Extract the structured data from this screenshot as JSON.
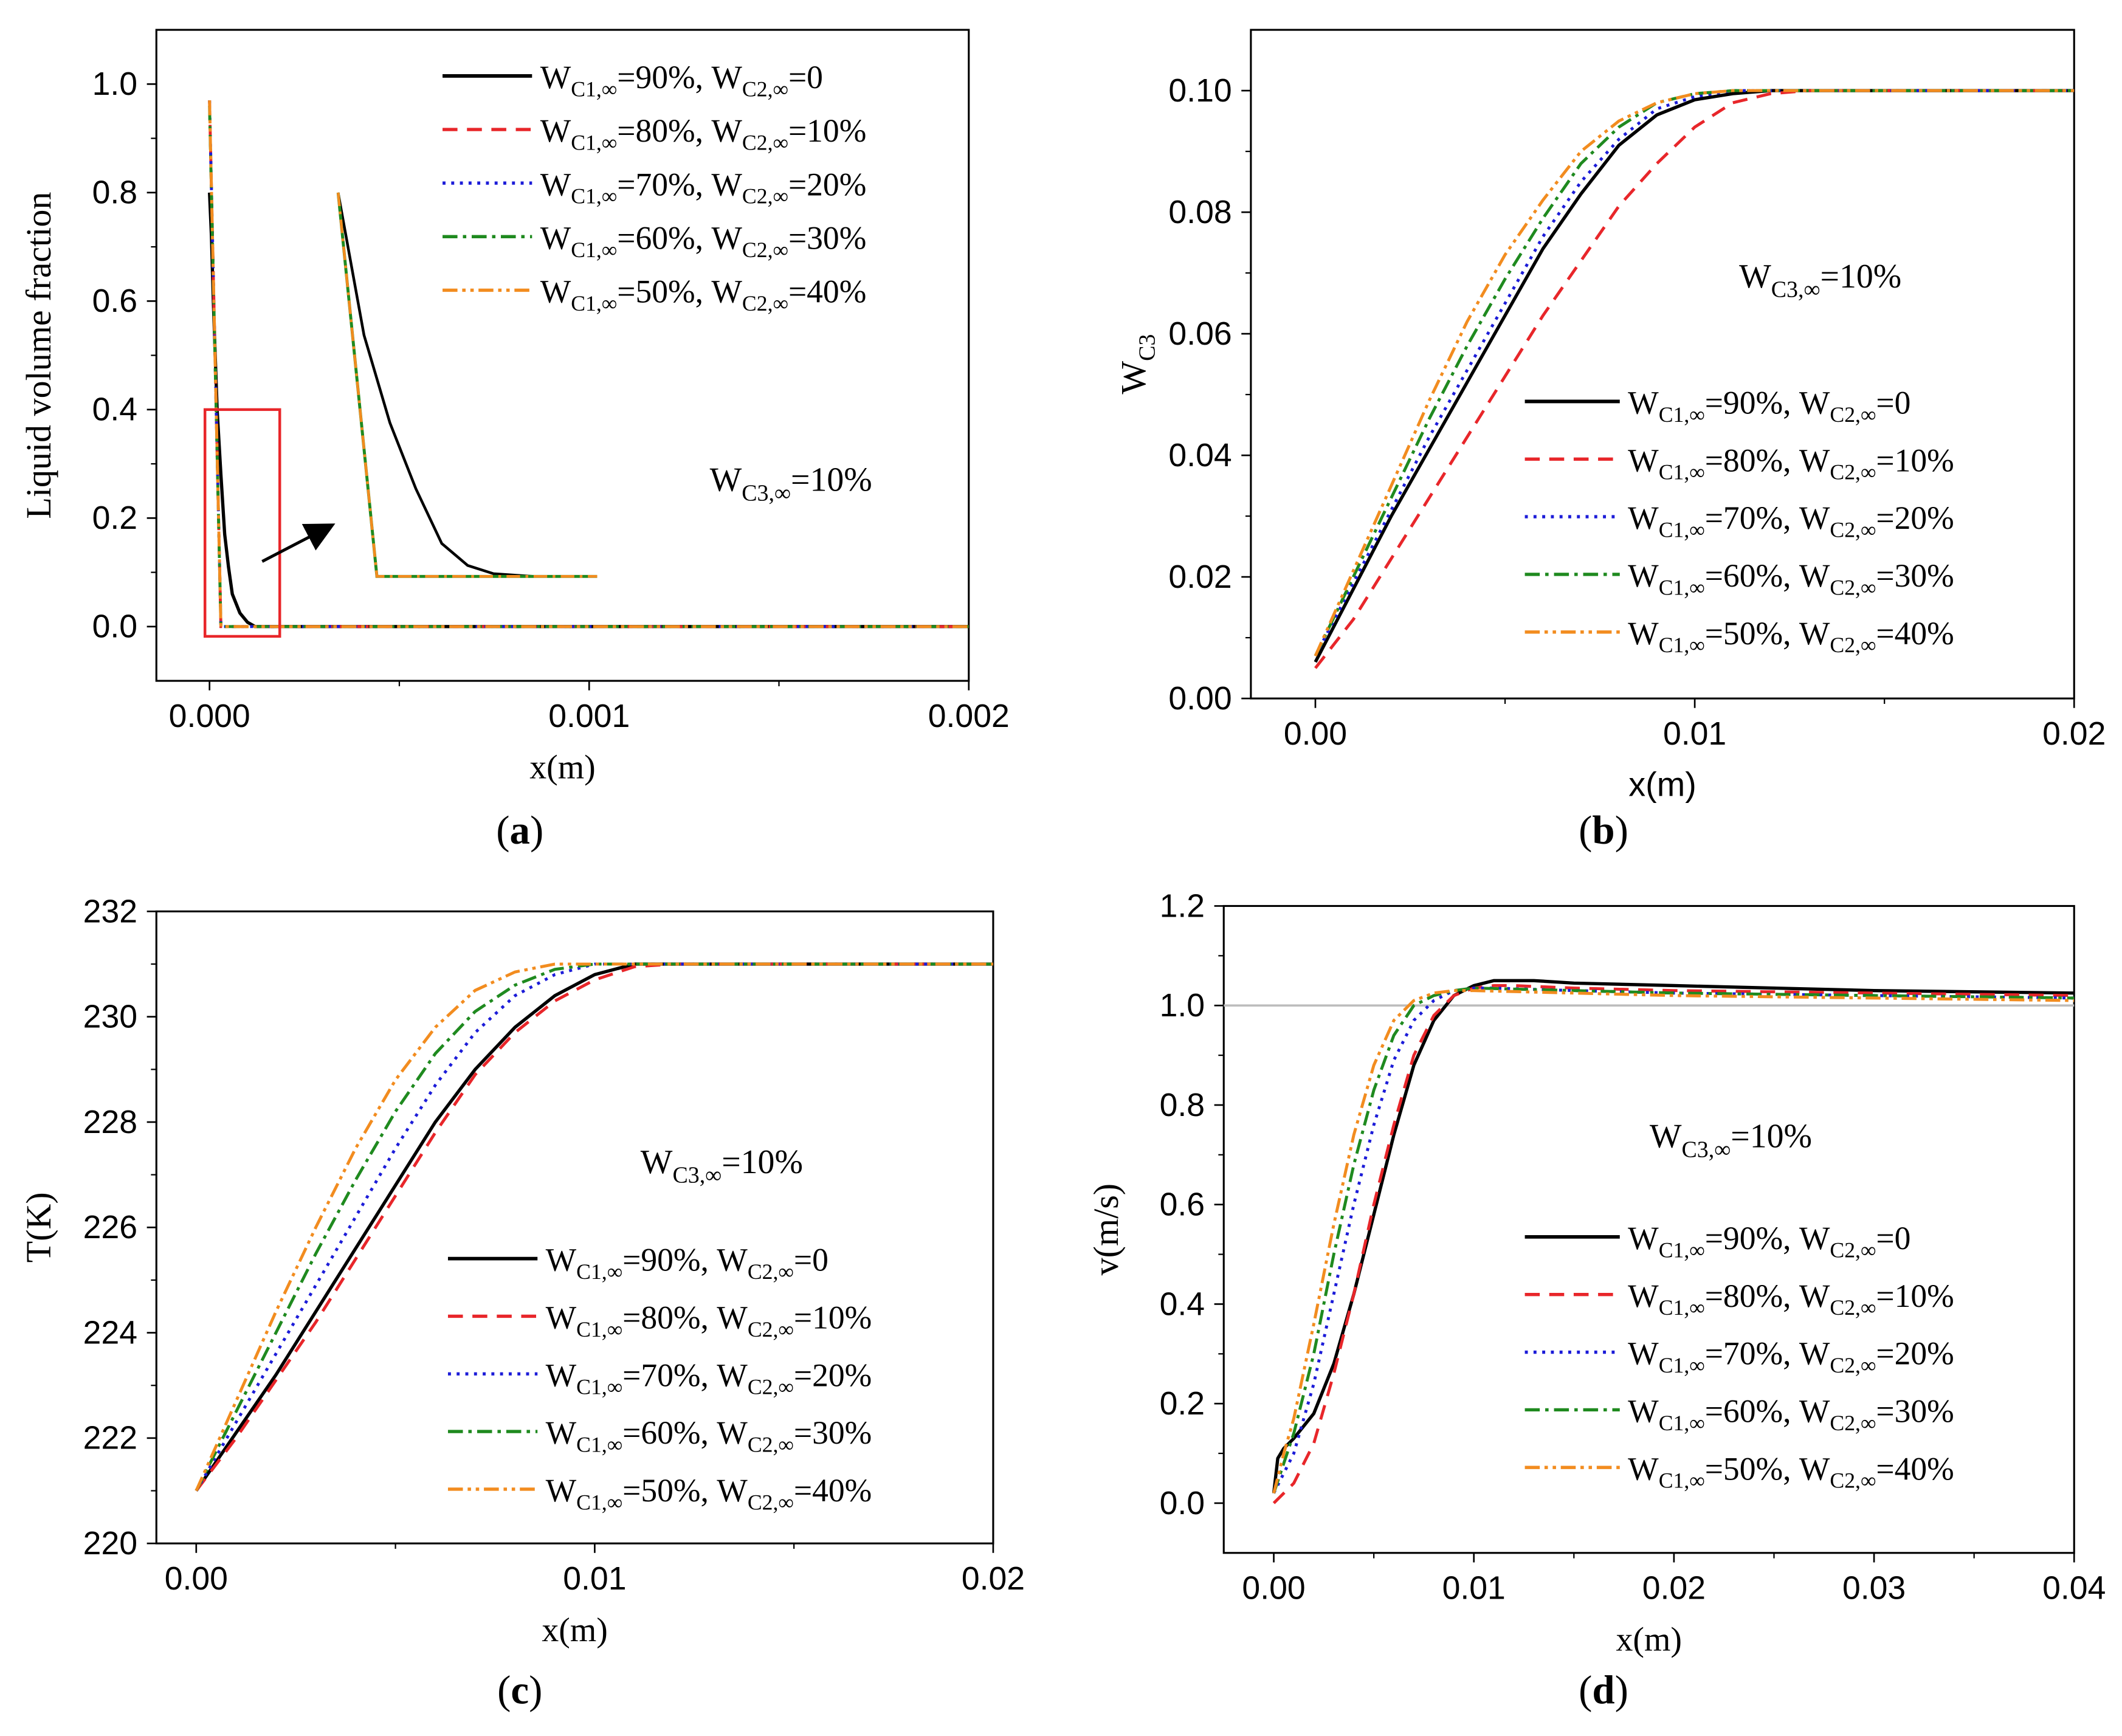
{
  "legend_labels": [
    {
      "c1": "=90%, ",
      "c2": "=0"
    },
    {
      "c1": "=80%, ",
      "c2": "=10%"
    },
    {
      "c1": "=70%, ",
      "c2": "=20%"
    },
    {
      "c1": "=60%, ",
      "c2": "=30%"
    },
    {
      "c1": "=50%, ",
      "c2": "=40%"
    }
  ],
  "series_styles": [
    {
      "color": "#000000",
      "dash": ""
    },
    {
      "color": "#e8262a",
      "dash": "dashed"
    },
    {
      "color": "#1c1cd8",
      "dash": "dotted"
    },
    {
      "color": "#1f8a1f",
      "dash": "dash-dot"
    },
    {
      "color": "#f28c1f",
      "dash": "dash-dot-dot"
    }
  ],
  "chart_data": [
    {
      "type": "line",
      "panel_label": "a",
      "xlabel": "x(m)",
      "ylabel": "Liquid volume fraction",
      "xlim": [
        -0.00014,
        0.002
      ],
      "ylim": [
        -0.1,
        1.1
      ],
      "xticks": [
        0,
        0.001,
        0.002
      ],
      "xtick_labels": [
        "0.000",
        "0.001",
        "0.002"
      ],
      "yticks": [
        0,
        0.2,
        0.4,
        0.6,
        0.8,
        1.0
      ],
      "ytick_labels": [
        "0.0",
        "0.2",
        "0.4",
        "0.6",
        "0.8",
        "1.0"
      ],
      "annotation": "=10%",
      "series": [
        {
          "name": "WC1,∞=90%, WC2,∞=0",
          "x": [
            0,
            5e-06,
            1e-05,
            2e-05,
            3e-05,
            4e-05,
            5e-05,
            6e-05,
            8e-05,
            0.0001,
            0.00012,
            0.002
          ],
          "y": [
            0.8,
            0.72,
            0.6,
            0.4,
            0.28,
            0.17,
            0.11,
            0.06,
            0.025,
            0.008,
            0,
            0
          ]
        },
        {
          "name": "WC1,∞=80%, WC2,∞=10%",
          "x": [
            0,
            3e-05,
            0.002
          ],
          "y": [
            0.97,
            0,
            0
          ]
        },
        {
          "name": "WC1,∞=70%, WC2,∞=20%",
          "x": [
            0,
            3e-05,
            0.002
          ],
          "y": [
            0.97,
            0,
            0
          ]
        },
        {
          "name": "WC1,∞=60%, WC2,∞=30%",
          "x": [
            0,
            3e-05,
            0.002
          ],
          "y": [
            0.96,
            0,
            0
          ]
        },
        {
          "name": "WC1,∞=50%, WC2,∞=40%",
          "x": [
            0,
            3e-05,
            0.002
          ],
          "y": [
            0.97,
            0,
            0
          ]
        }
      ],
      "inset": {
        "note": "zoomed view of region x 0 to 0.0002, y -0.02 to 0.4",
        "series": [
          {
            "x": [
              0,
              2e-05,
              4e-05,
              6e-05,
              8e-05,
              0.0001,
              0.00012,
              0.00015,
              0.0002
            ],
            "y": [
              0.8,
              0.54,
              0.38,
              0.26,
              0.16,
              0.12,
              0.105,
              0.1,
              0.1
            ]
          },
          {
            "x": [
              0,
              3e-05,
              0.0002
            ],
            "y": [
              0.8,
              0.1,
              0.1
            ]
          }
        ]
      }
    },
    {
      "type": "line",
      "panel_label": "b",
      "xlabel": "x(m)",
      "ylabel": "W",
      "ylabel_sub": "C3",
      "xlim": [
        -0.0017,
        0.02
      ],
      "ylim": [
        0,
        0.11
      ],
      "xticks": [
        0,
        0.01,
        0.02
      ],
      "xtick_labels": [
        "0.00",
        "0.01",
        "0.02"
      ],
      "yticks": [
        0,
        0.02,
        0.04,
        0.06,
        0.08,
        0.1
      ],
      "ytick_labels": [
        "0.00",
        "0.02",
        "0.04",
        "0.06",
        "0.08",
        "0.10"
      ],
      "annotation": "=10%",
      "series": [
        {
          "name": "WC1,∞=90%, WC2,∞=0",
          "x": [
            0,
            0.001,
            0.002,
            0.003,
            0.004,
            0.005,
            0.006,
            0.007,
            0.008,
            0.009,
            0.01,
            0.011,
            0.012,
            0.013,
            0.02
          ],
          "y": [
            0.006,
            0.018,
            0.03,
            0.041,
            0.052,
            0.063,
            0.074,
            0.083,
            0.091,
            0.096,
            0.0985,
            0.0995,
            0.1,
            0.1,
            0.1
          ]
        },
        {
          "name": "WC1,∞=80%, WC2,∞=10%",
          "x": [
            0,
            0.001,
            0.002,
            0.003,
            0.004,
            0.005,
            0.006,
            0.007,
            0.008,
            0.009,
            0.01,
            0.011,
            0.012,
            0.013,
            0.02
          ],
          "y": [
            0.005,
            0.013,
            0.023,
            0.033,
            0.043,
            0.053,
            0.063,
            0.072,
            0.081,
            0.088,
            0.094,
            0.098,
            0.0995,
            0.1,
            0.1
          ]
        },
        {
          "name": "WC1,∞=70%, WC2,∞=20%",
          "x": [
            0,
            0.001,
            0.002,
            0.003,
            0.004,
            0.005,
            0.006,
            0.007,
            0.008,
            0.009,
            0.01,
            0.011,
            0.012,
            0.02
          ],
          "y": [
            0.007,
            0.019,
            0.031,
            0.043,
            0.054,
            0.065,
            0.076,
            0.085,
            0.092,
            0.097,
            0.099,
            0.1,
            0.1,
            0.1
          ]
        },
        {
          "name": "WC1,∞=60%, WC2,∞=30%",
          "x": [
            0,
            0.001,
            0.002,
            0.003,
            0.004,
            0.005,
            0.006,
            0.007,
            0.008,
            0.009,
            0.01,
            0.011,
            0.02
          ],
          "y": [
            0.007,
            0.02,
            0.033,
            0.046,
            0.058,
            0.069,
            0.079,
            0.088,
            0.094,
            0.098,
            0.0995,
            0.1,
            0.1
          ]
        },
        {
          "name": "WC1,∞=50%, WC2,∞=40%",
          "x": [
            0,
            0.001,
            0.002,
            0.003,
            0.004,
            0.005,
            0.006,
            0.007,
            0.008,
            0.009,
            0.01,
            0.011,
            0.02
          ],
          "y": [
            0.007,
            0.021,
            0.035,
            0.049,
            0.062,
            0.073,
            0.082,
            0.09,
            0.095,
            0.098,
            0.0995,
            0.1,
            0.1
          ]
        }
      ]
    },
    {
      "type": "line",
      "panel_label": "c",
      "xlabel": "x(m)",
      "ylabel": "T(K)",
      "xlim": [
        -0.001,
        0.02
      ],
      "ylim": [
        220,
        232
      ],
      "xticks": [
        0,
        0.01,
        0.02
      ],
      "xtick_labels": [
        "0.00",
        "0.01",
        "0.02"
      ],
      "yticks": [
        220,
        222,
        224,
        226,
        228,
        230,
        232
      ],
      "ytick_labels": [
        "220",
        "222",
        "224",
        "226",
        "228",
        "230",
        "232"
      ],
      "annotation": "=10%",
      "series": [
        {
          "name": "WC1,∞=90%, WC2,∞=0",
          "x": [
            0,
            0.001,
            0.002,
            0.003,
            0.004,
            0.005,
            0.006,
            0.007,
            0.008,
            0.009,
            0.01,
            0.011,
            0.012,
            0.013,
            0.02
          ],
          "y": [
            221,
            222.1,
            223.2,
            224.4,
            225.6,
            226.8,
            228,
            229,
            229.8,
            230.4,
            230.8,
            231,
            231,
            231,
            231
          ]
        },
        {
          "name": "WC1,∞=80%, WC2,∞=10%",
          "x": [
            0,
            0.001,
            0.002,
            0.003,
            0.004,
            0.005,
            0.006,
            0.007,
            0.008,
            0.009,
            0.01,
            0.011,
            0.012,
            0.013,
            0.02
          ],
          "y": [
            221,
            222,
            223.1,
            224.2,
            225.4,
            226.6,
            227.8,
            228.9,
            229.7,
            230.3,
            230.7,
            230.95,
            231,
            231,
            231
          ]
        },
        {
          "name": "WC1,∞=70%, WC2,∞=20%",
          "x": [
            0,
            0.001,
            0.002,
            0.003,
            0.004,
            0.005,
            0.006,
            0.007,
            0.008,
            0.009,
            0.01,
            0.011,
            0.012,
            0.02
          ],
          "y": [
            221,
            222.3,
            223.6,
            224.9,
            226.2,
            227.5,
            228.7,
            229.7,
            230.4,
            230.8,
            231,
            231,
            231,
            231
          ]
        },
        {
          "name": "WC1,∞=60%, WC2,∞=30%",
          "x": [
            0,
            0.001,
            0.002,
            0.003,
            0.004,
            0.005,
            0.006,
            0.007,
            0.008,
            0.009,
            0.01,
            0.011,
            0.02
          ],
          "y": [
            221,
            222.5,
            224,
            225.5,
            226.9,
            228.2,
            229.3,
            230.1,
            230.6,
            230.9,
            231,
            231,
            231
          ]
        },
        {
          "name": "WC1,∞=50%, WC2,∞=40%",
          "x": [
            0,
            0.001,
            0.002,
            0.003,
            0.004,
            0.005,
            0.006,
            0.007,
            0.008,
            0.009,
            0.01,
            0.02
          ],
          "y": [
            221,
            222.7,
            224.4,
            226,
            227.5,
            228.8,
            229.8,
            230.5,
            230.85,
            231,
            231,
            231
          ]
        }
      ]
    },
    {
      "type": "line",
      "panel_label": "d",
      "xlabel": "x(m)",
      "ylabel": "v(m/s)",
      "xlim": [
        -0.0025,
        0.04
      ],
      "ylim": [
        -0.1,
        1.2
      ],
      "xticks": [
        0,
        0.01,
        0.02,
        0.03,
        0.04
      ],
      "xtick_labels": [
        "0.00",
        "0.01",
        "0.02",
        "0.03",
        "0.04"
      ],
      "yticks": [
        0,
        0.2,
        0.4,
        0.6,
        0.8,
        1.0,
        1.2
      ],
      "ytick_labels": [
        "0.0",
        "0.2",
        "0.4",
        "0.6",
        "0.8",
        "1.0",
        "1.2"
      ],
      "reference_line_y": 1.0,
      "annotation": "=10%",
      "series": [
        {
          "name": "WC1,∞=90%, WC2,∞=0",
          "x": [
            0,
            0.0002,
            0.0005,
            0.001,
            0.002,
            0.003,
            0.004,
            0.005,
            0.006,
            0.007,
            0.008,
            0.009,
            0.01,
            0.011,
            0.012,
            0.013,
            0.015,
            0.02,
            0.03,
            0.04
          ],
          "y": [
            0.02,
            0.09,
            0.11,
            0.13,
            0.18,
            0.28,
            0.42,
            0.58,
            0.74,
            0.88,
            0.97,
            1.02,
            1.04,
            1.05,
            1.05,
            1.05,
            1.045,
            1.04,
            1.03,
            1.025
          ]
        },
        {
          "name": "WC1,∞=80%, WC2,∞=10%",
          "x": [
            0,
            0.001,
            0.002,
            0.003,
            0.004,
            0.005,
            0.006,
            0.007,
            0.008,
            0.009,
            0.01,
            0.011,
            0.012,
            0.015,
            0.02,
            0.03,
            0.04
          ],
          "y": [
            0,
            0.04,
            0.12,
            0.26,
            0.42,
            0.6,
            0.76,
            0.9,
            0.98,
            1.02,
            1.035,
            1.04,
            1.04,
            1.035,
            1.03,
            1.025,
            1.02
          ]
        },
        {
          "name": "WC1,∞=70%, WC2,∞=20%",
          "x": [
            0,
            0.0005,
            0.001,
            0.002,
            0.003,
            0.004,
            0.005,
            0.006,
            0.007,
            0.008,
            0.009,
            0.01,
            0.011,
            0.015,
            0.02,
            0.03,
            0.04
          ],
          "y": [
            0.02,
            0.06,
            0.1,
            0.24,
            0.42,
            0.6,
            0.76,
            0.89,
            0.97,
            1.01,
            1.03,
            1.035,
            1.035,
            1.03,
            1.025,
            1.02,
            1.015
          ]
        },
        {
          "name": "WC1,∞=60%, WC2,∞=30%",
          "x": [
            0,
            0.0005,
            0.001,
            0.002,
            0.003,
            0.004,
            0.005,
            0.006,
            0.007,
            0.008,
            0.009,
            0.01,
            0.015,
            0.02,
            0.03,
            0.04
          ],
          "y": [
            0.02,
            0.08,
            0.14,
            0.3,
            0.5,
            0.68,
            0.83,
            0.94,
            1.0,
            1.02,
            1.03,
            1.035,
            1.03,
            1.025,
            1.02,
            1.015
          ]
        },
        {
          "name": "WC1,∞=50%, WC2,∞=40%",
          "x": [
            0,
            0.0005,
            0.001,
            0.002,
            0.003,
            0.004,
            0.005,
            0.006,
            0.007,
            0.008,
            0.009,
            0.01,
            0.015,
            0.02,
            0.03,
            0.04
          ],
          "y": [
            0.02,
            0.1,
            0.17,
            0.36,
            0.56,
            0.74,
            0.88,
            0.97,
            1.01,
            1.025,
            1.03,
            1.03,
            1.025,
            1.02,
            1.015,
            1.01
          ]
        }
      ]
    }
  ]
}
